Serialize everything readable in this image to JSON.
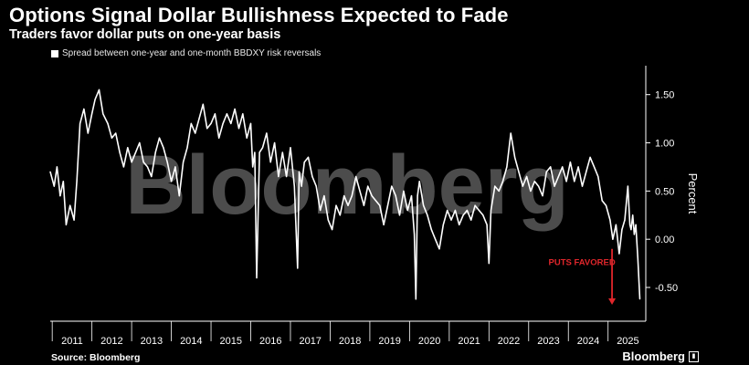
{
  "header": {
    "title": "Options Signal Dollar Bullishness Expected to Fade",
    "subtitle": "Traders favor dollar puts on one-year basis"
  },
  "footer": {
    "source": "Source: Bloomberg",
    "brand": "Bloomberg"
  },
  "watermark": "Bloomberg",
  "colors": {
    "background": "#000000",
    "line": "#ffffff",
    "annotation": "#e0262b"
  },
  "chart_data": {
    "type": "line",
    "title": "Options Signal Dollar Bullishness Expected to Fade",
    "subtitle": "Traders favor dollar puts on one-year basis",
    "ylabel": "Percent",
    "xlabel": "",
    "ylim": [
      -0.85,
      1.8
    ],
    "xlim": [
      2010.95,
      2025.95
    ],
    "yticks": [
      1.5,
      1.0,
      0.5,
      0.0,
      -0.5
    ],
    "ytick_labels": [
      "1.50",
      "1.00",
      "0.50",
      "0.00",
      "-0.50"
    ],
    "xtick_labels": [
      "2011",
      "2012",
      "2013",
      "2014",
      "2015",
      "2016",
      "2017",
      "2018",
      "2019",
      "2020",
      "2021",
      "2022",
      "2023",
      "2024",
      "2025"
    ],
    "grid": false,
    "legend": "top-left",
    "series": [
      {
        "name": "Spread between one-year and one-month BBDXY risk reversals",
        "x": [
          2010.95,
          2011.05,
          2011.12,
          2011.2,
          2011.28,
          2011.35,
          2011.45,
          2011.55,
          2011.62,
          2011.7,
          2011.8,
          2011.9,
          2012.0,
          2012.08,
          2012.18,
          2012.28,
          2012.4,
          2012.5,
          2012.6,
          2012.7,
          2012.8,
          2012.9,
          2013.0,
          2013.1,
          2013.2,
          2013.3,
          2013.4,
          2013.5,
          2013.6,
          2013.7,
          2013.8,
          2013.9,
          2014.0,
          2014.1,
          2014.2,
          2014.3,
          2014.4,
          2014.5,
          2014.6,
          2014.7,
          2014.8,
          2014.9,
          2015.0,
          2015.1,
          2015.2,
          2015.3,
          2015.4,
          2015.5,
          2015.6,
          2015.7,
          2015.8,
          2015.9,
          2016.0,
          2016.05,
          2016.1,
          2016.15,
          2016.22,
          2016.3,
          2016.4,
          2016.5,
          2016.6,
          2016.7,
          2016.8,
          2016.9,
          2017.0,
          2017.1,
          2017.18,
          2017.22,
          2017.28,
          2017.35,
          2017.45,
          2017.55,
          2017.65,
          2017.75,
          2017.85,
          2017.95,
          2018.05,
          2018.15,
          2018.25,
          2018.35,
          2018.45,
          2018.55,
          2018.65,
          2018.75,
          2018.85,
          2018.95,
          2019.05,
          2019.15,
          2019.25,
          2019.35,
          2019.45,
          2019.55,
          2019.65,
          2019.75,
          2019.85,
          2019.95,
          2020.05,
          2020.12,
          2020.16,
          2020.2,
          2020.25,
          2020.35,
          2020.45,
          2020.55,
          2020.65,
          2020.75,
          2020.85,
          2020.95,
          2021.05,
          2021.15,
          2021.25,
          2021.35,
          2021.45,
          2021.55,
          2021.65,
          2021.75,
          2021.85,
          2021.95,
          2022.0,
          2022.05,
          2022.15,
          2022.25,
          2022.35,
          2022.45,
          2022.55,
          2022.65,
          2022.75,
          2022.85,
          2022.95,
          2023.05,
          2023.15,
          2023.25,
          2023.35,
          2023.45,
          2023.55,
          2023.65,
          2023.75,
          2023.85,
          2023.95,
          2024.05,
          2024.15,
          2024.25,
          2024.35,
          2024.45,
          2024.55,
          2024.65,
          2024.75,
          2024.85,
          2024.95,
          2025.05,
          2025.12,
          2025.2,
          2025.28,
          2025.35,
          2025.42,
          2025.5,
          2025.55,
          2025.58,
          2025.62,
          2025.66,
          2025.7,
          2025.75,
          2025.8
        ],
        "values": [
          0.7,
          0.55,
          0.75,
          0.45,
          0.6,
          0.15,
          0.35,
          0.2,
          0.6,
          1.2,
          1.35,
          1.1,
          1.3,
          1.45,
          1.55,
          1.3,
          1.2,
          1.05,
          1.1,
          0.9,
          0.75,
          0.95,
          0.8,
          0.9,
          1.0,
          0.8,
          0.75,
          0.65,
          0.9,
          1.05,
          0.95,
          0.8,
          0.6,
          0.75,
          0.45,
          0.8,
          0.95,
          1.2,
          1.1,
          1.25,
          1.4,
          1.15,
          1.2,
          1.3,
          1.05,
          1.2,
          1.3,
          1.2,
          1.35,
          1.15,
          1.3,
          1.05,
          1.2,
          0.75,
          0.9,
          -0.4,
          0.9,
          0.95,
          1.1,
          0.8,
          1.0,
          0.65,
          0.9,
          0.65,
          0.95,
          0.55,
          -0.3,
          0.7,
          0.55,
          0.8,
          0.85,
          0.65,
          0.55,
          0.3,
          0.45,
          0.2,
          0.1,
          0.35,
          0.25,
          0.45,
          0.35,
          0.45,
          0.65,
          0.5,
          0.35,
          0.55,
          0.45,
          0.4,
          0.35,
          0.15,
          0.35,
          0.55,
          0.45,
          0.25,
          0.5,
          0.3,
          0.45,
          0.05,
          -0.62,
          0.45,
          0.6,
          0.35,
          0.25,
          0.1,
          0.0,
          -0.1,
          0.15,
          0.3,
          0.2,
          0.3,
          0.15,
          0.25,
          0.3,
          0.2,
          0.35,
          0.3,
          0.25,
          0.15,
          -0.25,
          0.3,
          0.55,
          0.5,
          0.6,
          0.75,
          1.1,
          0.85,
          0.7,
          0.55,
          0.65,
          0.5,
          0.6,
          0.55,
          0.45,
          0.7,
          0.75,
          0.55,
          0.65,
          0.75,
          0.6,
          0.8,
          0.6,
          0.75,
          0.55,
          0.7,
          0.85,
          0.75,
          0.65,
          0.4,
          0.35,
          0.2,
          0.0,
          0.15,
          -0.15,
          0.1,
          0.2,
          0.55,
          0.15,
          0.1,
          0.25,
          0.05,
          0.15,
          -0.2,
          -0.62
        ]
      }
    ],
    "annotations": [
      {
        "text": "PUTS FAVORED",
        "x": 2023.5,
        "y": -0.27,
        "arrow_from": [
          2025.1,
          -0.1
        ],
        "arrow_to": [
          2025.1,
          -0.68
        ]
      }
    ]
  }
}
